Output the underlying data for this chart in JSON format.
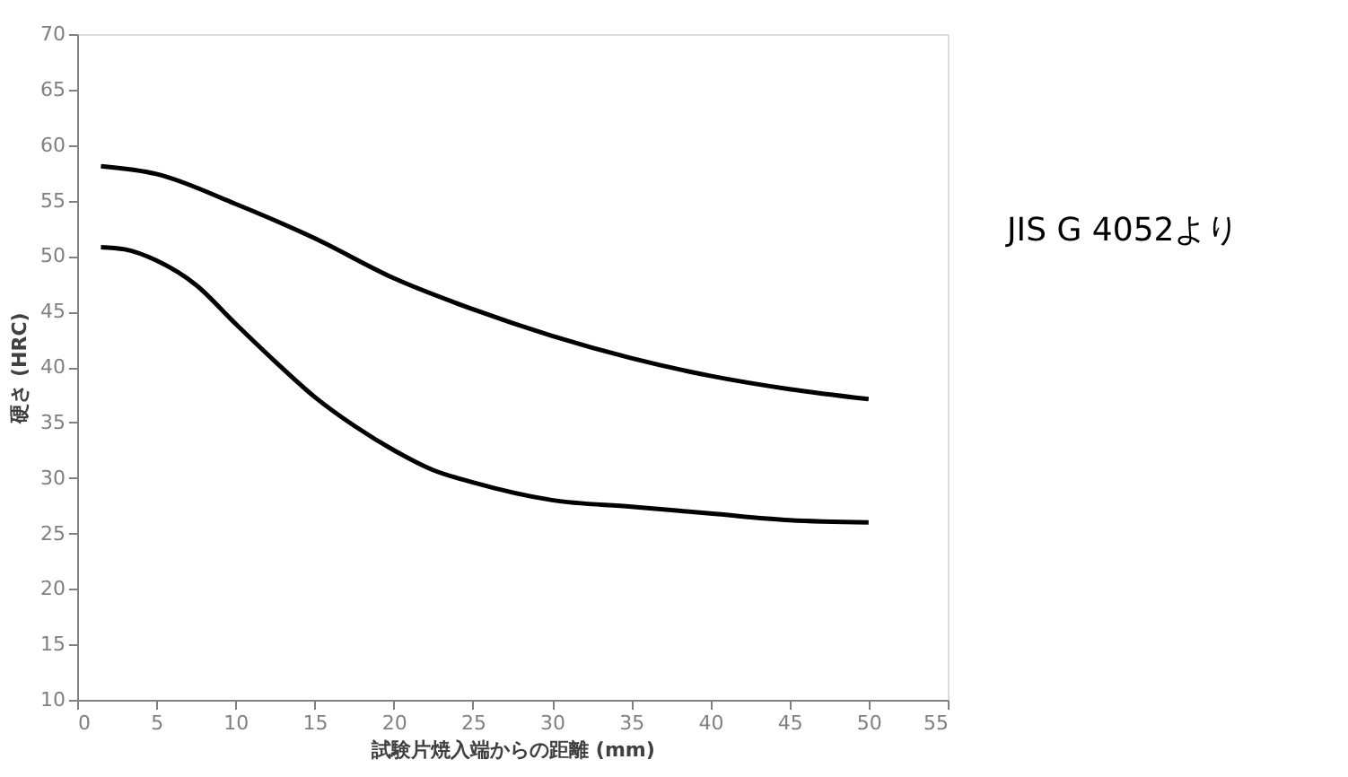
{
  "chart_data": {
    "type": "line",
    "xlabel": "試験片焼入端からの距離 (mm)",
    "ylabel": "硬さ (HRC)",
    "annotations": [
      "JIS G 4052より"
    ],
    "xlim": [
      0,
      55
    ],
    "xticks": [
      0,
      5,
      10,
      15,
      20,
      25,
      30,
      35,
      40,
      45,
      50,
      55
    ],
    "ylim": [
      10,
      70
    ],
    "yticks": [
      10,
      15,
      20,
      25,
      30,
      35,
      40,
      45,
      50,
      55,
      60,
      65,
      70
    ],
    "grid": false,
    "legend": false,
    "marker": "none",
    "line_style": "solid",
    "series": [
      {
        "color": "#000000",
        "x": [
          1.5,
          5,
          10,
          15,
          20,
          25,
          30,
          35,
          40,
          45,
          50
        ],
        "values": [
          58.1,
          57.4,
          54.7,
          51.6,
          48.0,
          45.2,
          42.8,
          40.8,
          39.2,
          38.0,
          37.1
        ]
      },
      {
        "color": "#000000",
        "x": [
          1.5,
          3,
          5,
          7.5,
          10,
          12.5,
          15,
          17.5,
          20,
          22.5,
          25,
          30,
          35,
          40,
          45,
          50
        ],
        "values": [
          50.8,
          50.6,
          49.6,
          47.4,
          43.9,
          40.5,
          37.3,
          34.7,
          32.5,
          30.7,
          29.6,
          28.0,
          27.4,
          26.8,
          26.2,
          26.0
        ]
      }
    ]
  }
}
